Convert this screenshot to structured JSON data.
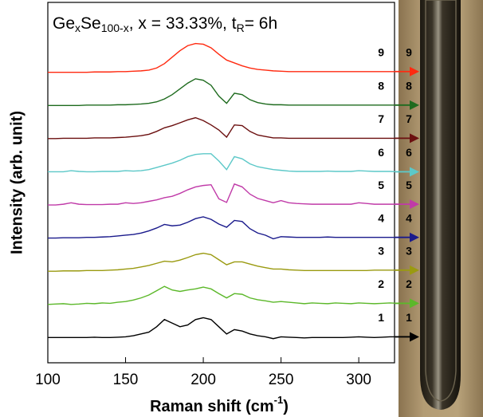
{
  "chart_data": {
    "type": "line",
    "title": [
      "Ge",
      "x",
      "Se",
      "100-x",
      ", x = 33.33%, t",
      "R",
      "= 6h"
    ],
    "x_label": [
      "Raman shift (cm",
      "-1",
      ")"
    ],
    "y_label": "Intensity (arb. unit)",
    "xlim": [
      100,
      323
    ],
    "xticks": [
      100,
      150,
      200,
      250,
      300
    ],
    "ylim": [
      0,
      10
    ],
    "x": [
      100,
      105,
      110,
      115,
      120,
      125,
      130,
      135,
      140,
      145,
      150,
      155,
      160,
      165,
      170,
      175,
      180,
      185,
      190,
      195,
      200,
      205,
      210,
      215,
      220,
      225,
      230,
      235,
      240,
      245,
      250,
      255,
      260,
      265,
      270,
      275,
      280,
      285,
      290,
      295,
      300,
      305,
      310,
      315,
      320,
      325
    ],
    "series": [
      {
        "name": "1",
        "color": "#000000",
        "values": [
          0.7,
          0.7,
          0.7,
          0.7,
          0.7,
          0.7,
          0.71,
          0.7,
          0.7,
          0.71,
          0.72,
          0.75,
          0.8,
          0.85,
          1.0,
          1.2,
          1.1,
          1.0,
          1.05,
          1.2,
          1.25,
          1.2,
          1.0,
          0.8,
          0.92,
          0.88,
          0.8,
          0.75,
          0.72,
          0.67,
          0.72,
          0.71,
          0.7,
          0.69,
          0.7,
          0.7,
          0.7,
          0.7,
          0.7,
          0.71,
          0.72,
          0.71,
          0.7,
          0.71,
          0.72,
          0.72
        ]
      },
      {
        "name": "2",
        "color": "#5cb82a",
        "values": [
          1.62,
          1.63,
          1.64,
          1.62,
          1.63,
          1.65,
          1.64,
          1.66,
          1.65,
          1.68,
          1.7,
          1.74,
          1.8,
          1.88,
          2.0,
          2.12,
          2.02,
          1.98,
          2.02,
          2.05,
          2.1,
          2.05,
          1.92,
          1.8,
          1.92,
          1.9,
          1.8,
          1.75,
          1.72,
          1.68,
          1.7,
          1.68,
          1.66,
          1.64,
          1.66,
          1.65,
          1.64,
          1.66,
          1.65,
          1.64,
          1.66,
          1.65,
          1.64,
          1.65,
          1.66,
          1.65
        ]
      },
      {
        "name": "3",
        "color": "#9a9a10",
        "values": [
          2.54,
          2.54,
          2.55,
          2.55,
          2.55,
          2.56,
          2.56,
          2.56,
          2.57,
          2.58,
          2.6,
          2.62,
          2.66,
          2.7,
          2.76,
          2.82,
          2.8,
          2.85,
          2.92,
          3.0,
          3.04,
          3.0,
          2.86,
          2.72,
          2.8,
          2.8,
          2.74,
          2.68,
          2.64,
          2.6,
          2.6,
          2.58,
          2.57,
          2.56,
          2.56,
          2.56,
          2.56,
          2.56,
          2.56,
          2.56,
          2.56,
          2.56,
          2.57,
          2.57,
          2.57,
          2.57
        ]
      },
      {
        "name": "4",
        "color": "#1a1a8c",
        "values": [
          3.46,
          3.46,
          3.47,
          3.47,
          3.47,
          3.48,
          3.48,
          3.49,
          3.5,
          3.52,
          3.54,
          3.56,
          3.6,
          3.66,
          3.74,
          3.84,
          3.8,
          3.82,
          3.9,
          4.0,
          4.05,
          3.98,
          3.85,
          3.76,
          3.95,
          3.92,
          3.72,
          3.6,
          3.54,
          3.44,
          3.5,
          3.49,
          3.48,
          3.48,
          3.48,
          3.48,
          3.49,
          3.48,
          3.48,
          3.48,
          3.48,
          3.48,
          3.48,
          3.48,
          3.48,
          3.48
        ]
      },
      {
        "name": "5",
        "color": "#c03aa8",
        "values": [
          4.38,
          4.38,
          4.4,
          4.44,
          4.4,
          4.39,
          4.39,
          4.39,
          4.4,
          4.4,
          4.44,
          4.42,
          4.44,
          4.48,
          4.52,
          4.58,
          4.62,
          4.7,
          4.8,
          4.88,
          4.92,
          4.94,
          4.55,
          4.45,
          4.96,
          4.88,
          4.68,
          4.56,
          4.5,
          4.44,
          4.5,
          4.44,
          4.42,
          4.41,
          4.4,
          4.4,
          4.4,
          4.4,
          4.4,
          4.4,
          4.44,
          4.42,
          4.4,
          4.4,
          4.4,
          4.4
        ]
      },
      {
        "name": "6",
        "color": "#5cc8c8",
        "values": [
          5.3,
          5.3,
          5.3,
          5.33,
          5.31,
          5.3,
          5.3,
          5.31,
          5.31,
          5.31,
          5.33,
          5.32,
          5.33,
          5.36,
          5.42,
          5.48,
          5.54,
          5.62,
          5.72,
          5.78,
          5.8,
          5.8,
          5.6,
          5.36,
          5.72,
          5.66,
          5.52,
          5.44,
          5.4,
          5.36,
          5.34,
          5.32,
          5.31,
          5.31,
          5.31,
          5.31,
          5.32,
          5.31,
          5.31,
          5.31,
          5.33,
          5.32,
          5.31,
          5.31,
          5.31,
          5.3
        ]
      },
      {
        "name": "7",
        "color": "#6b0f0f",
        "values": [
          6.22,
          6.22,
          6.23,
          6.23,
          6.23,
          6.23,
          6.24,
          6.24,
          6.24,
          6.25,
          6.26,
          6.28,
          6.3,
          6.34,
          6.42,
          6.52,
          6.58,
          6.66,
          6.74,
          6.8,
          6.72,
          6.6,
          6.46,
          6.26,
          6.6,
          6.58,
          6.42,
          6.32,
          6.28,
          6.24,
          6.24,
          6.23,
          6.23,
          6.23,
          6.23,
          6.23,
          6.23,
          6.23,
          6.23,
          6.23,
          6.23,
          6.23,
          6.23,
          6.23,
          6.23,
          6.23
        ]
      },
      {
        "name": "8",
        "color": "#1e6b1e",
        "values": [
          7.14,
          7.14,
          7.14,
          7.14,
          7.14,
          7.15,
          7.15,
          7.15,
          7.15,
          7.16,
          7.16,
          7.17,
          7.18,
          7.2,
          7.24,
          7.32,
          7.44,
          7.6,
          7.76,
          7.88,
          7.84,
          7.7,
          7.4,
          7.2,
          7.48,
          7.44,
          7.3,
          7.22,
          7.18,
          7.16,
          7.16,
          7.15,
          7.15,
          7.15,
          7.15,
          7.15,
          7.15,
          7.15,
          7.15,
          7.15,
          7.15,
          7.15,
          7.15,
          7.15,
          7.15,
          7.15
        ]
      },
      {
        "name": "9",
        "color": "#ff2a10",
        "values": [
          8.06,
          8.06,
          8.06,
          8.06,
          8.06,
          8.06,
          8.07,
          8.07,
          8.07,
          8.08,
          8.08,
          8.09,
          8.1,
          8.12,
          8.18,
          8.3,
          8.48,
          8.66,
          8.8,
          8.86,
          8.84,
          8.74,
          8.56,
          8.4,
          8.32,
          8.24,
          8.18,
          8.14,
          8.12,
          8.1,
          8.09,
          8.08,
          8.08,
          8.08,
          8.08,
          8.08,
          8.08,
          8.08,
          8.08,
          8.08,
          8.08,
          8.08,
          8.08,
          8.08,
          8.08,
          8.08
        ]
      }
    ]
  }
}
